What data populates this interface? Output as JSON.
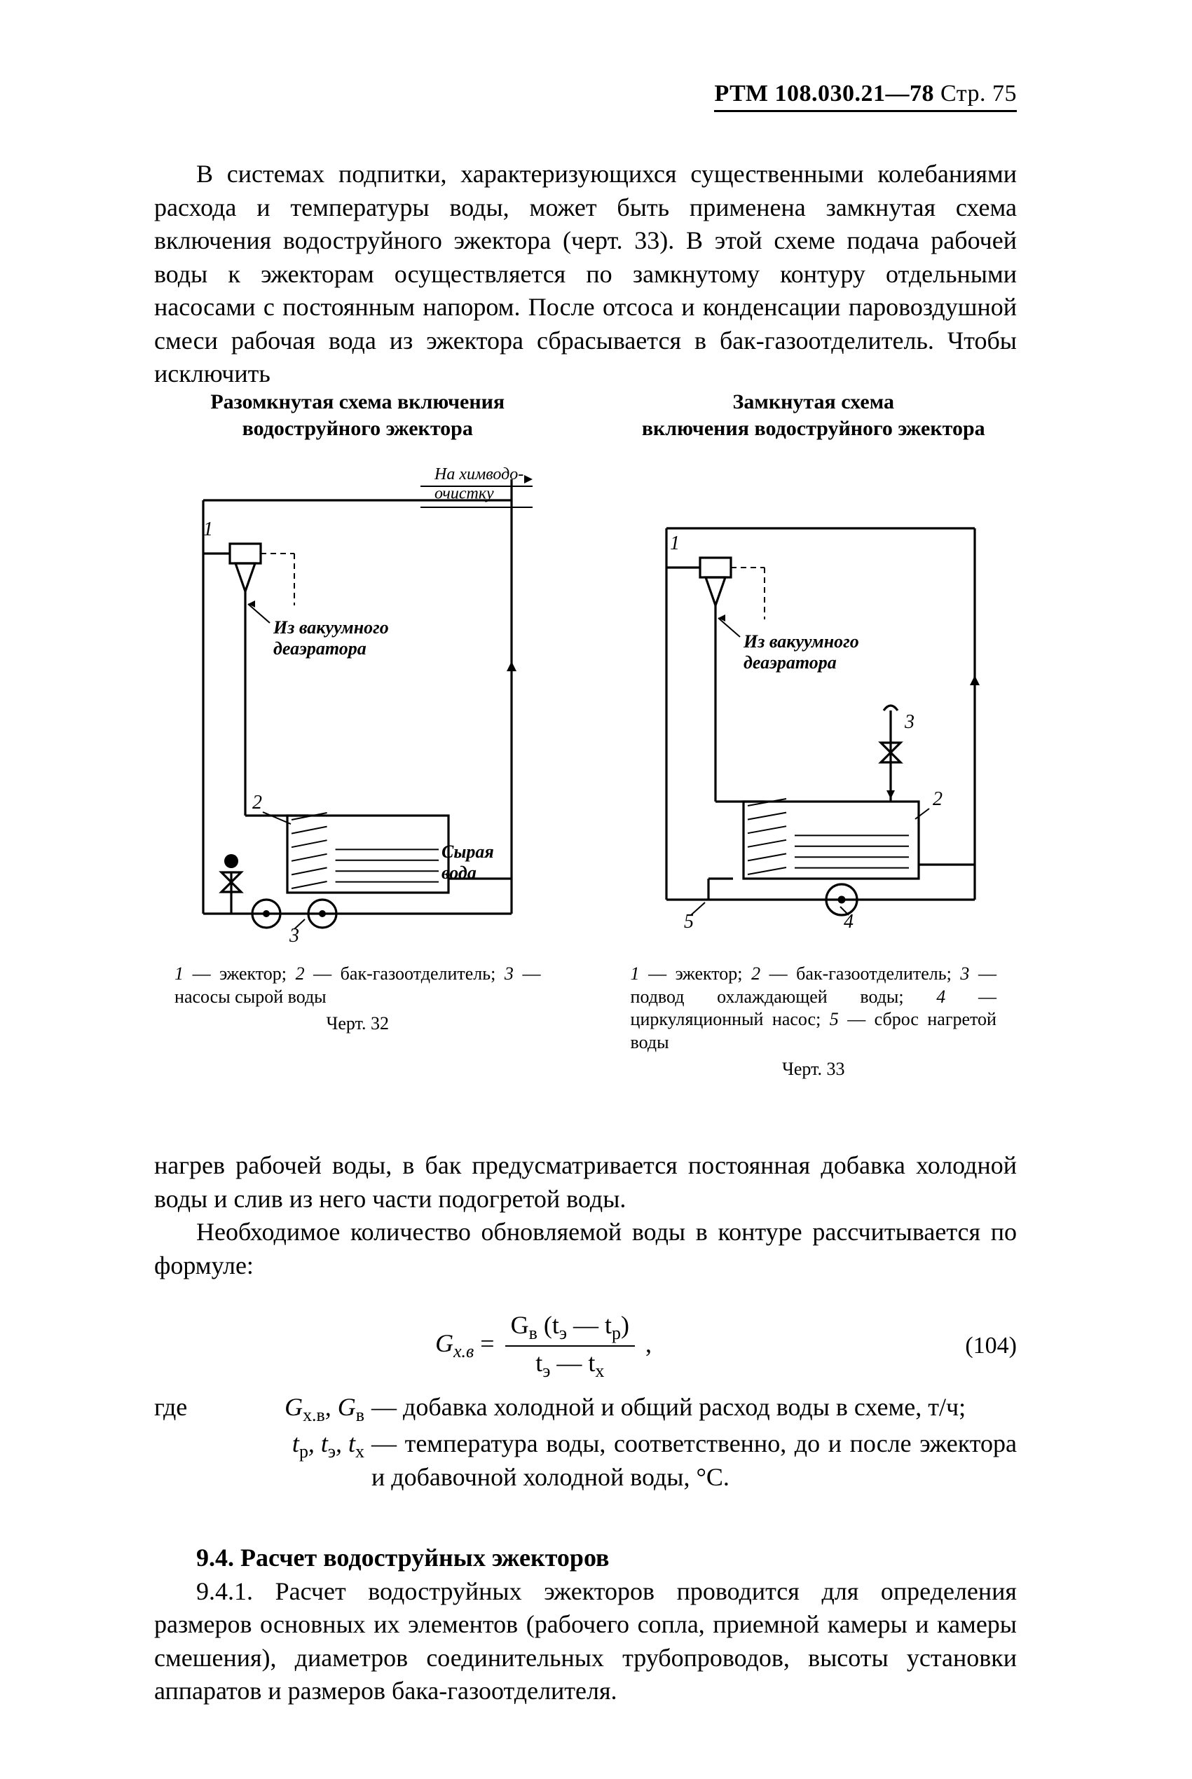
{
  "header": {
    "rtm": "РТМ 108.030.21—78",
    "page_label": "Стр. 75"
  },
  "para1": "В системах подпитки, характеризующихся существенными коле­баниями расхода и температуры воды, может быть применена замкнутая схема включения водоструйного эжектора (черт. 33). В этой схеме подача рабочей воды к эжекторам осуществляется по замкнутому контуру отдельными насосами с постоянным напором. После отсоса и конденсации паровоздушной смеси рабочая вода из эжектора сбрасывается в бак-газоотделитель. Чтобы исключить",
  "figA": {
    "title": "Разомкнутая схема включе­ния водоструйного эжектора",
    "top_label": "На химводо-\nочистку",
    "inlet_label": "Из вакуумного\nдеаэратора",
    "tank_label": "Сырая\nвода",
    "nums": {
      "n1": "1",
      "n2": "2",
      "n3": "3"
    },
    "legend_items": [
      {
        "n": "1",
        "t": "эжектор"
      },
      {
        "n": "2",
        "t": "бак-газоотде­литель"
      },
      {
        "n": "3",
        "t": "насосы сырой воды"
      }
    ],
    "caption": "Черт. 32",
    "stroke": "#000000",
    "line_w": 3.2,
    "font_label": 26,
    "font_num": 28
  },
  "figB": {
    "title": "Замкнутая схема\nвключения водо­струйного эжектора",
    "inlet_label": "Из вакуумного\nдеаэратора",
    "nums": {
      "n1": "1",
      "n2": "2",
      "n3": "3",
      "n4": "4",
      "n5": "5"
    },
    "legend_items": [
      {
        "n": "1",
        "t": "эжектор"
      },
      {
        "n": "2",
        "t": "бак-га­зоотделитель"
      },
      {
        "n": "3",
        "t": "подвод охлаждающей воды"
      },
      {
        "n": "4",
        "t": "циркуляционный насос"
      },
      {
        "n": "5",
        "t": "сброс нагретой воды"
      }
    ],
    "caption": "Черт. 33",
    "stroke": "#000000",
    "line_w": 3.2,
    "font_label": 26,
    "font_num": 28
  },
  "para2": {
    "l1": "нагрев рабочей воды, в бак предусматривается постоянная добавка холодной воды и слив из него части подогретой воды.",
    "l2": "Необходимое количество обновляемой воды в контуре рассчиты­вается по формуле:"
  },
  "formula": {
    "lhs": "G",
    "lhs_sub": "х.в",
    "eq": "=",
    "num_a": "G",
    "num_a_sub": "в",
    "num_b": "(t",
    "num_b_sub": "э",
    "num_c": "— t",
    "num_c_sub": "р",
    "num_d": ")",
    "den_a": "t",
    "den_a_sub": "э",
    "den_b": "— t",
    "den_b_sub": "х",
    "tail": ",",
    "number": "(104)"
  },
  "where": {
    "label": "где",
    "row1_terms_a": "G",
    "row1_terms_a_sub": "х.в",
    "row1_terms_b": ", G",
    "row1_terms_b_sub": "в",
    "row1_desc": "— добавка холодной и общий расход воды в схе­ме, т/ч;",
    "row2_terms_a": "t",
    "row2_terms_a_sub": "р",
    "row2_terms_b": ", t",
    "row2_terms_b_sub": "э",
    "row2_terms_c": ", t",
    "row2_terms_c_sub": "х",
    "row2_desc": "— температура воды, соответственно, до и после эжектора и добавочной холодной воды, °C."
  },
  "sec94": {
    "head": "9.4. Расчет водоструйных эжекторов",
    "body": "9.4.1. Расчет водоструйных эжекторов проводится для опреде­ления размеров основных их элементов (рабочего сопла, приемной камеры и камеры смешения), диаметров соединительных трубопро­водов, высоты установки аппаратов и размеров бака-газоотдели­теля."
  }
}
